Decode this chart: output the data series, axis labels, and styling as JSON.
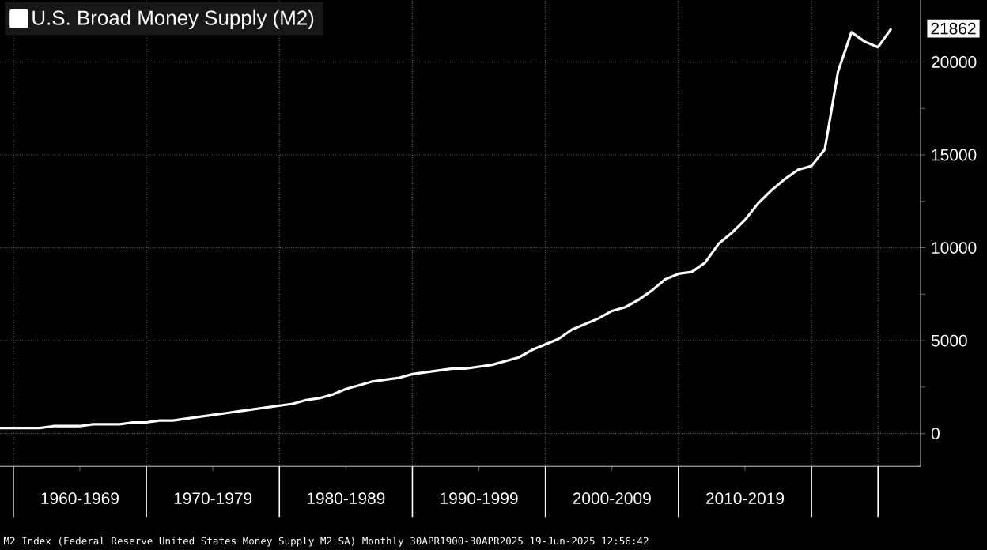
{
  "chart_data": {
    "type": "line",
    "legend": "top left",
    "grid": true,
    "line_style": "solid",
    "ylim": [
      -1770,
      24010
    ],
    "yticks": [
      0,
      {
        "value": 2500,
        "label": null
      },
      5000,
      {
        "value": 7500,
        "label": null
      },
      10000,
      {
        "value": 12500,
        "label": null
      },
      15000,
      {
        "value": 17500,
        "label": null
      },
      20000
    ],
    "categories": [
      null,
      null,
      null,
      null,
      null,
      null,
      "1960-1969",
      null,
      null,
      null,
      null,
      null,
      null,
      null,
      null,
      null,
      "1970-1979",
      null,
      null,
      null,
      null,
      null,
      null,
      null,
      null,
      null,
      "1980-1989",
      null,
      null,
      null,
      null,
      null,
      null,
      null,
      null,
      null,
      "1990-1999",
      null,
      null,
      null,
      null,
      null,
      null,
      null,
      null,
      null,
      "2000-2009",
      null,
      null,
      null,
      null,
      null,
      null,
      null,
      null,
      null,
      "2010-2019",
      null,
      null,
      null,
      null,
      null,
      null,
      null,
      null,
      null,
      null,
      null
    ],
    "series": [
      {
        "name": "U.S. Broad Money Supply (M2)",
        "color": "#ffffff",
        "values": [
          300,
          300,
          300,
          300,
          400,
          400,
          400,
          500,
          500,
          500,
          600,
          600,
          700,
          700,
          800,
          900,
          1000,
          1100,
          1200,
          1300,
          1400,
          1500,
          1600,
          1800,
          1900,
          2100,
          2400,
          2600,
          2800,
          2900,
          3000,
          3200,
          3300,
          3400,
          3500,
          3500,
          3600,
          3700,
          3900,
          4100,
          4500,
          4800,
          5100,
          5600,
          5900,
          6200,
          6600,
          6800,
          7200,
          7700,
          8300,
          8600,
          8700,
          9200,
          10200,
          10800,
          11500,
          12400,
          13100,
          13700,
          14200,
          14400,
          15300,
          19500,
          21600,
          21100,
          20800,
          21800
        ]
      }
    ],
    "annotations": [
      "21862",
      "M2 Index (Federal Reserve United States Money Supply M2 SA)  Monthly 30APR1900-30APR2025  19-Jun-2025 12:56:42"
    ]
  }
}
